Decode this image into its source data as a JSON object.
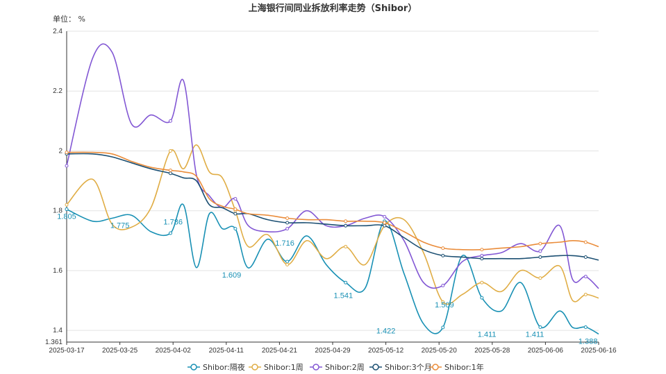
{
  "chart_data": {
    "type": "line",
    "title": "上海银行间同业拆放利率走势（Shibor）",
    "unit_label": "单位： %",
    "xlabel": "",
    "ylabel": "",
    "ylim": [
      1.361,
      2.4
    ],
    "y_ticks": [
      "2.4",
      "2.2",
      "2",
      "1.8",
      "1.6",
      "1.4",
      "1.361"
    ],
    "y_tick_values": [
      2.4,
      2.2,
      2.0,
      1.8,
      1.6,
      1.4,
      1.361
    ],
    "x_ticks": [
      "2025-03-17",
      "2025-03-25",
      "2025-04-02",
      "2025-04-11",
      "2025-04-21",
      "2025-04-29",
      "2025-05-12",
      "2025-05-20",
      "2025-05-28",
      "2025-06-06",
      "2025-06-16"
    ],
    "grid": true,
    "legend_position": "bottom",
    "x": [
      0,
      4,
      7,
      10,
      13,
      16,
      18,
      20,
      22,
      24,
      26,
      28,
      31,
      34,
      37,
      40,
      43,
      46,
      49,
      52,
      55,
      58,
      61,
      64,
      67,
      70,
      73,
      76,
      78,
      80,
      82
    ],
    "series": [
      {
        "name": "Shibor:隔夜",
        "color": "#1890b4",
        "values": [
          1.805,
          1.765,
          1.775,
          1.785,
          1.73,
          1.725,
          1.82,
          1.61,
          1.79,
          1.74,
          1.74,
          1.609,
          1.705,
          1.63,
          1.716,
          1.62,
          1.56,
          1.541,
          1.765,
          1.59,
          1.422,
          1.41,
          1.65,
          1.509,
          1.465,
          1.56,
          1.411,
          1.465,
          1.41,
          1.411,
          1.388
        ]
      },
      {
        "name": "Shibor:1周",
        "color": "#e0ad45",
        "values": [
          1.82,
          1.905,
          1.755,
          1.745,
          1.81,
          2.0,
          1.94,
          2.02,
          1.93,
          1.91,
          1.8,
          1.68,
          1.72,
          1.62,
          1.7,
          1.64,
          1.68,
          1.62,
          1.75,
          1.77,
          1.66,
          1.495,
          1.52,
          1.56,
          1.53,
          1.6,
          1.575,
          1.615,
          1.5,
          1.52,
          1.508
        ]
      },
      {
        "name": "Shibor:2周",
        "color": "#8257d4",
        "values": [
          1.95,
          2.31,
          2.33,
          2.09,
          2.12,
          2.1,
          2.235,
          1.92,
          1.85,
          1.81,
          1.84,
          1.75,
          1.73,
          1.74,
          1.8,
          1.75,
          1.75,
          1.775,
          1.78,
          1.7,
          1.56,
          1.55,
          1.63,
          1.65,
          1.66,
          1.69,
          1.665,
          1.75,
          1.57,
          1.58,
          1.54
        ]
      },
      {
        "name": "Shibor:3个月",
        "color": "#1b4f72",
        "values": [
          1.99,
          1.99,
          1.98,
          1.96,
          1.94,
          1.925,
          1.91,
          1.9,
          1.82,
          1.81,
          1.79,
          1.79,
          1.77,
          1.76,
          1.76,
          1.755,
          1.75,
          1.75,
          1.75,
          1.71,
          1.67,
          1.65,
          1.645,
          1.64,
          1.64,
          1.64,
          1.645,
          1.65,
          1.65,
          1.645,
          1.635
        ]
      },
      {
        "name": "Shibor:1年",
        "color": "#ea8c3a",
        "values": [
          1.995,
          1.995,
          1.99,
          1.965,
          1.945,
          1.935,
          1.93,
          1.915,
          1.84,
          1.815,
          1.805,
          1.79,
          1.785,
          1.775,
          1.77,
          1.77,
          1.765,
          1.765,
          1.76,
          1.73,
          1.695,
          1.675,
          1.67,
          1.67,
          1.675,
          1.68,
          1.69,
          1.695,
          1.7,
          1.695,
          1.68
        ]
      }
    ],
    "point_labels": [
      {
        "x": 0,
        "value": 1.805,
        "text": "1.805"
      },
      {
        "x": 10,
        "value": 1.775,
        "text": "1.775"
      },
      {
        "x": 20,
        "value": 1.786,
        "text": "1.786"
      },
      {
        "x": 31,
        "value": 1.609,
        "text": "1.609"
      },
      {
        "x": 41,
        "value": 1.716,
        "text": "1.716"
      },
      {
        "x": 52,
        "value": 1.541,
        "text": "1.541"
      },
      {
        "x": 60,
        "value": 1.422,
        "text": "1.422"
      },
      {
        "x": 71,
        "value": 1.509,
        "text": "1.509"
      },
      {
        "x": 79,
        "value": 1.411,
        "text": "1.411"
      },
      {
        "x": 88,
        "value": 1.411,
        "text": "1.411"
      },
      {
        "x": 98,
        "value": 1.388,
        "text": "1.388"
      }
    ]
  }
}
